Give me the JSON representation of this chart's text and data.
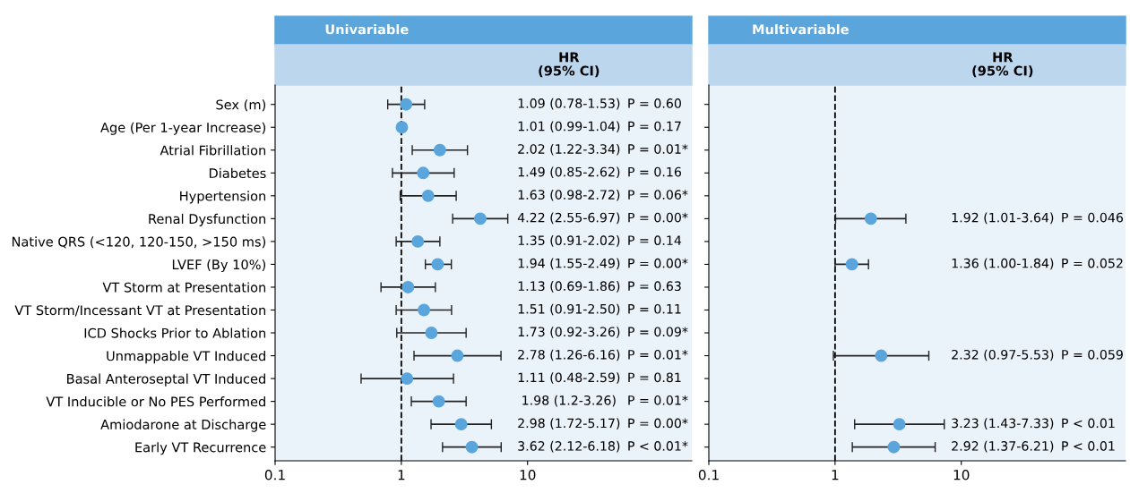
{
  "chart_data": [
    {
      "type": "scatter",
      "orientation": "horizontal",
      "title": "Univariable",
      "categories": [
        "Sex (m)",
        "Age (Per 1-year Increase)",
        "Atrial Fibrillation",
        "Diabetes",
        "Hypertension",
        "Renal Dysfunction",
        "Native QRS (<120, 120-150, >150 ms)",
        "LVEF (By 10%)",
        "VT Storm at Presentation",
        "VT Storm/Incessant VT at Presentation",
        "ICD Shocks Prior to Ablation",
        "Unmappable VT Induced",
        "Basal Anteroseptal VT Induced",
        "VT Inducible or No PES Performed",
        "Amiodarone at Discharge",
        "Early VT Recurrence"
      ],
      "values": [
        1.09,
        1.01,
        2.02,
        1.49,
        1.63,
        4.22,
        1.35,
        1.94,
        1.13,
        1.51,
        1.73,
        2.78,
        1.11,
        1.98,
        2.98,
        3.62
      ],
      "errors": [
        [
          0.78,
          1.53
        ],
        [
          0.99,
          1.04
        ],
        [
          1.22,
          3.34
        ],
        [
          0.85,
          2.62
        ],
        [
          0.98,
          2.72
        ],
        [
          2.55,
          6.97
        ],
        [
          0.91,
          2.02
        ],
        [
          1.55,
          2.49
        ],
        [
          0.69,
          1.86
        ],
        [
          0.91,
          2.5
        ],
        [
          0.92,
          3.26
        ],
        [
          1.26,
          6.16
        ],
        [
          0.48,
          2.59
        ],
        [
          1.2,
          3.26
        ],
        [
          1.72,
          5.17
        ],
        [
          2.12,
          6.18
        ]
      ],
      "color": "#5aa5dc",
      "marker": "circle",
      "log": "x",
      "xlim": [
        0.1,
        200
      ],
      "xticks": [
        0.1,
        1,
        10
      ],
      "ref_lines": [
        {
          "axis": "x",
          "value": 1,
          "line_style": "dashed",
          "color": "#000000"
        }
      ],
      "annotations": [
        "HR\n(95% CI)",
        "1.09 (0.78-1.53)",
        "1.01 (0.99-1.04)",
        "2.02 (1.22-3.34)",
        "1.49 (0.85-2.62)",
        "1.63 (0.98-2.72)",
        "4.22 (2.55-6.97)",
        "1.35 (0.91-2.02)",
        "1.94 (1.55-2.49)",
        "1.13 (0.69-1.86)",
        "1.51 (0.91-2.50)",
        "1.73 (0.92-3.26)",
        "2.78 (1.26-6.16)",
        "1.11 (0.48-2.59)",
        "1.98 (1.2-3.26)",
        "2.98 (1.72-5.17)",
        "3.62 (2.12-6.18)",
        "P = 0.60",
        "P = 0.17",
        "P = 0.01*",
        "P = 0.16",
        "P = 0.06*",
        "P = 0.00*",
        "P = 0.14",
        "P = 0.00*",
        "P = 0.63",
        "P = 0.11",
        "P = 0.09*",
        "P = 0.01*",
        "P = 0.81",
        "P = 0.01*",
        "P = 0.00*",
        "P < 0.01*"
      ],
      "grid": false
    },
    {
      "type": "scatter",
      "orientation": "horizontal",
      "title": "Multivariable",
      "tick_labels": "x",
      "categories": [
        null,
        null,
        null,
        null,
        null,
        null,
        null,
        null,
        null,
        null,
        null,
        null,
        null,
        null,
        null,
        null
      ],
      "values": [
        null,
        null,
        null,
        null,
        null,
        1.92,
        null,
        1.36,
        null,
        null,
        null,
        2.32,
        null,
        null,
        3.23,
        2.92
      ],
      "errors": [
        null,
        null,
        null,
        null,
        null,
        [
          1.01,
          3.64
        ],
        null,
        [
          1.0,
          1.84
        ],
        null,
        null,
        null,
        [
          0.97,
          5.53
        ],
        null,
        null,
        [
          1.43,
          7.33
        ],
        [
          1.37,
          6.21
        ]
      ],
      "color": "#5aa5dc",
      "marker": "circle",
      "log": "x",
      "xlim": [
        0.1,
        200
      ],
      "xticks": [
        0.1,
        1,
        10
      ],
      "ref_lines": [
        {
          "axis": "x",
          "value": 1,
          "line_style": "dashed",
          "color": "#000000"
        }
      ],
      "annotations": [
        "HR\n(95% CI)",
        "1.92 (1.01-3.64)",
        "1.36 (1.00-1.84)",
        "2.32 (0.97-5.53)",
        "3.23 (1.43-7.33)",
        "2.92 (1.37-6.21)",
        "P = 0.046",
        "P = 0.052",
        "P = 0.059",
        "P < 0.01",
        "P < 0.01"
      ],
      "grid": false
    }
  ]
}
